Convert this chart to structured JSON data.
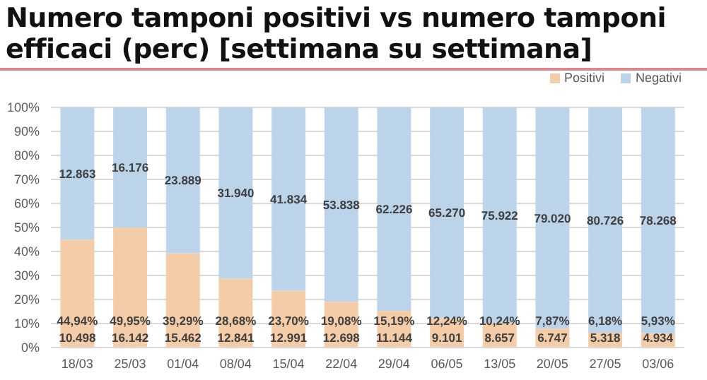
{
  "chart_data": {
    "type": "bar",
    "title": "Numero tamponi positivi vs numero tamponi efficaci (perc) [settimana su settimana]",
    "categories": [
      "18/03",
      "25/03",
      "01/04",
      "08/04",
      "15/04",
      "22/04",
      "29/04",
      "06/05",
      "13/05",
      "20/05",
      "27/05",
      "03/06"
    ],
    "stacked": true,
    "series": [
      {
        "name": "Positivi",
        "color": "#f4cda8",
        "values": [
          44.94,
          49.95,
          39.29,
          28.68,
          23.7,
          19.08,
          15.19,
          12.24,
          10.24,
          7.87,
          6.18,
          5.93
        ],
        "value_labels": [
          "44,94%\n10.498",
          "49,95%\n16.142",
          "39,29%\n15.462",
          "28,68%\n12.841",
          "23,70%\n12.991",
          "19,08%\n12.698",
          "15,19%\n11.144",
          "12,24%\n9.101",
          "10,24%\n8.657",
          "7,87%\n6.747",
          "6,18%\n5.318",
          "5,93%\n4.934"
        ]
      },
      {
        "name": "Negativi",
        "color": "#bcd4ea",
        "values": [
          55.1,
          50.1,
          60.7,
          71.3,
          76.3,
          80.9,
          84.8,
          87.8,
          89.8,
          92.1,
          93.8,
          94.1
        ]
      }
    ],
    "annotations": [
      "12.863",
      "16.176",
      "23.889",
      "31.940",
      "41.834",
      "53.838",
      "62.226",
      "65.270",
      "75.922",
      "79.020",
      "80.726",
      "78.268"
    ],
    "ylim": [
      0,
      100
    ],
    "yticks": [
      {
        "value": 0,
        "label": "0%"
      },
      {
        "value": 10,
        "label": "10%"
      },
      {
        "value": 20,
        "label": "20%"
      },
      {
        "value": 30,
        "label": "30%"
      },
      {
        "value": 40,
        "label": "40%"
      },
      {
        "value": 50,
        "label": "50%"
      },
      {
        "value": 60,
        "label": "60%"
      },
      {
        "value": 70,
        "label": "70%"
      },
      {
        "value": 80,
        "label": "80%"
      },
      {
        "value": 90,
        "label": "90%"
      },
      {
        "value": 100,
        "label": "100%"
      }
    ],
    "grid": "y",
    "legend": "top right"
  }
}
